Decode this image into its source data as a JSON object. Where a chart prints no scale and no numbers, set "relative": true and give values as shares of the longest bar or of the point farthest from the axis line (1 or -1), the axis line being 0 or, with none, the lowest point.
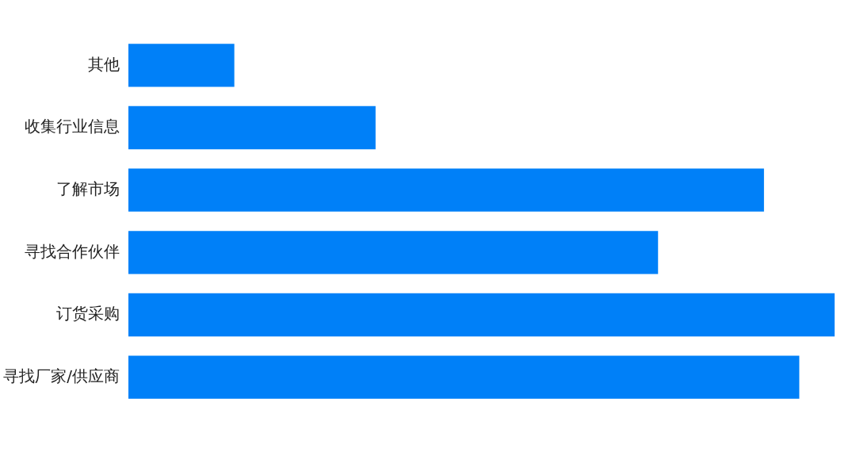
{
  "chart_data": {
    "type": "bar",
    "orientation": "horizontal",
    "relative": true,
    "categories": [
      "其他",
      "收集行业信息",
      "了解市场",
      "寻找合作伙伴",
      "订货采购",
      "寻找厂家/供应商"
    ],
    "values": [
      0.15,
      0.35,
      0.9,
      0.75,
      1,
      0.95
    ],
    "color": "#0080f8"
  }
}
